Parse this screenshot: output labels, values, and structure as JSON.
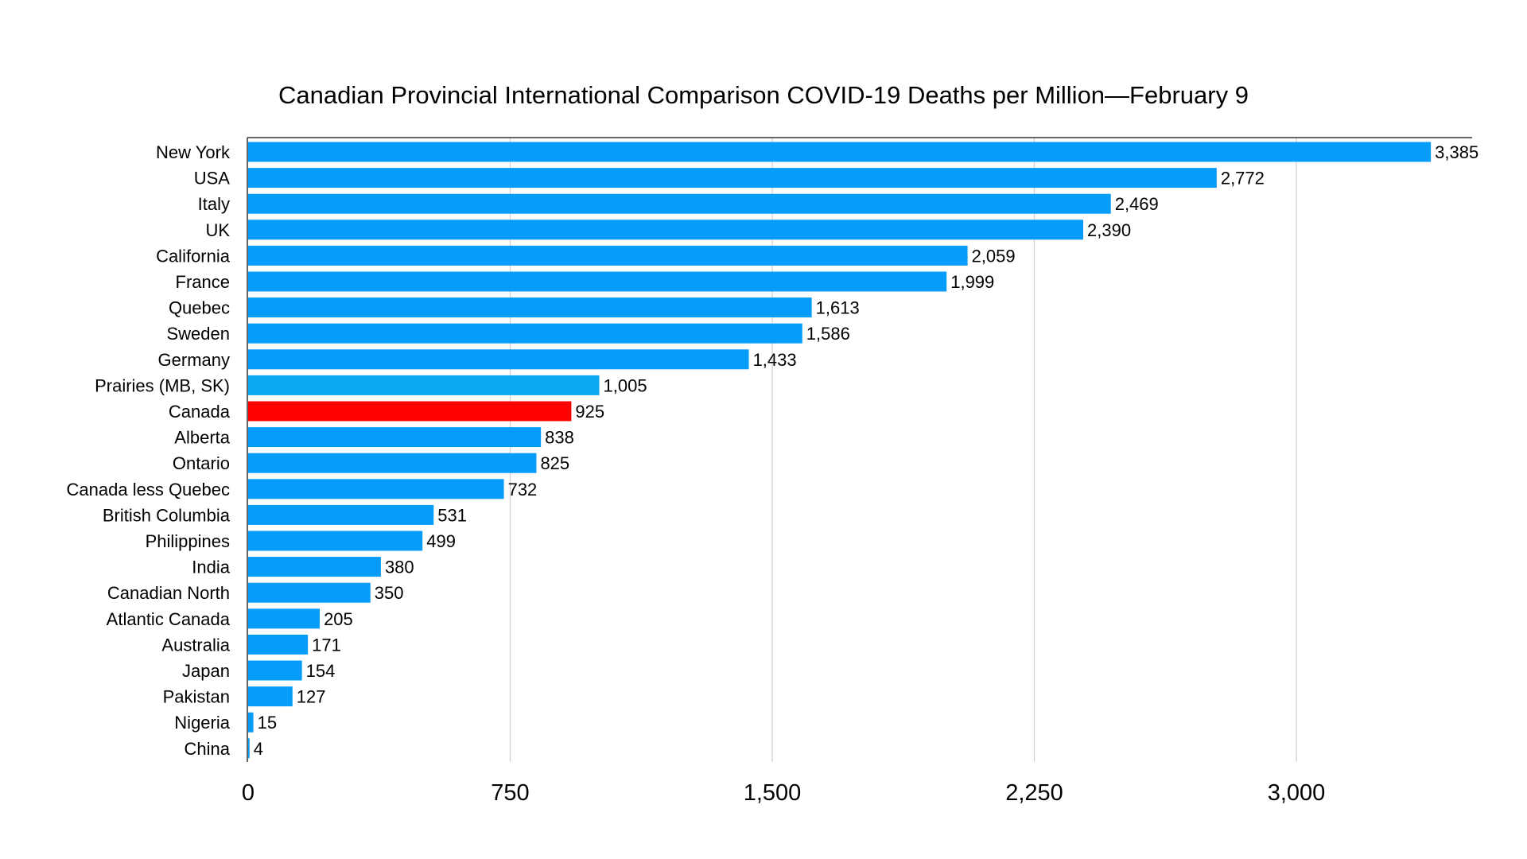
{
  "chart_data": {
    "type": "bar",
    "orientation": "horizontal",
    "title": "Canadian Provincial International Comparison COVID-19 Deaths per Million—February 9",
    "xlabel": "",
    "ylabel": "",
    "xlim": [
      0,
      3500
    ],
    "x_ticks": [
      0,
      750,
      1500,
      2250,
      3000
    ],
    "x_tick_labels": [
      "0",
      "750",
      "1,500",
      "2,250",
      "3,000"
    ],
    "grid": "vertical",
    "legend": "none",
    "categories": [
      "New York",
      "USA",
      "Italy",
      "UK",
      "California",
      "France",
      "Quebec",
      "Sweden",
      "Germany",
      "Prairies (MB, SK)",
      "Canada",
      "Alberta",
      "Ontario",
      "Canada less Quebec",
      "British Columbia",
      "Philippines",
      "India",
      "Canadian North",
      "Atlantic Canada",
      "Australia",
      "Japan",
      "Pakistan",
      "Nigeria",
      "China"
    ],
    "values": [
      3385,
      2772,
      2469,
      2390,
      2059,
      1999,
      1613,
      1586,
      1433,
      1005,
      925,
      838,
      825,
      732,
      531,
      499,
      380,
      350,
      205,
      171,
      154,
      127,
      15,
      4
    ],
    "value_labels": [
      "3,385",
      "2,772",
      "2,469",
      "2,390",
      "2,059",
      "1,999",
      "1,613",
      "1,586",
      "1,433",
      "1,005",
      "925",
      "838",
      "825",
      "732",
      "531",
      "499",
      "380",
      "350",
      "205",
      "171",
      "154",
      "127",
      "15",
      "4"
    ],
    "colors": {
      "default": "#069dfa",
      "Prairies (MB, SK)": "#0aabf0",
      "Canada": "#ff0000"
    }
  }
}
